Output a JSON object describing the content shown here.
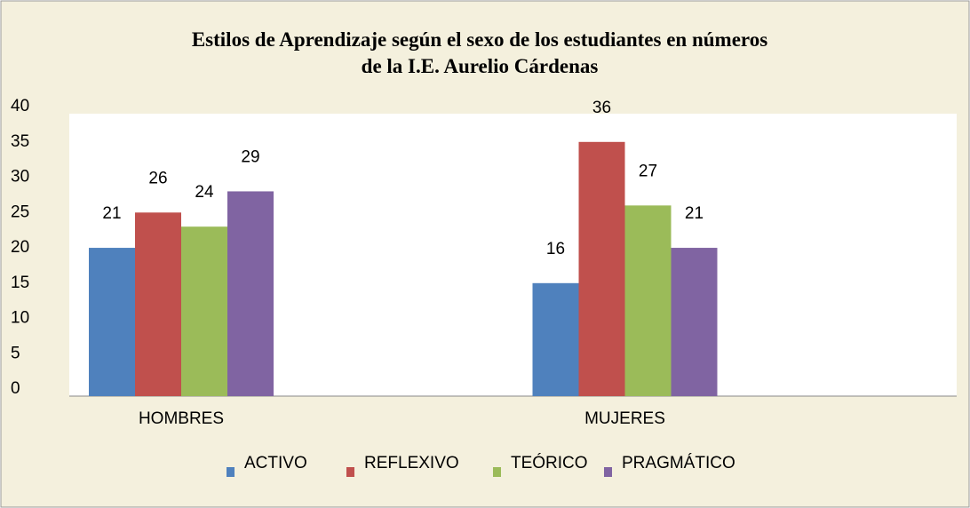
{
  "chart_data": {
    "type": "bar",
    "title": "Estilos de Aprendizaje según el sexo de los estudiantes en números\nde la I.E. Aurelio Cárdenas",
    "categories": [
      "HOMBRES",
      "MUJERES"
    ],
    "series": [
      {
        "name": "ACTIVO",
        "color": "#4f81bd",
        "values": [
          21,
          16
        ]
      },
      {
        "name": "REFLEXIVO",
        "color": "#c0504d",
        "values": [
          26,
          36
        ]
      },
      {
        "name": "TEÓRICO",
        "color": "#9bbb59",
        "values": [
          24,
          27
        ]
      },
      {
        "name": "PRAGMÁTICO",
        "color": "#8064a2",
        "values": [
          29,
          21
        ]
      }
    ],
    "ylim": [
      0,
      40
    ],
    "yticks": [
      0,
      5,
      10,
      15,
      20,
      25,
      30,
      35,
      40
    ],
    "grid": false,
    "legend": "bottom"
  }
}
